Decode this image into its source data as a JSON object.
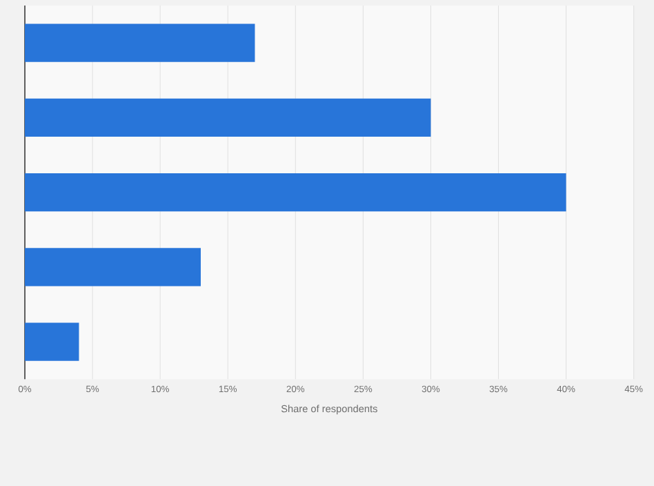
{
  "chart_data": {
    "type": "bar",
    "orientation": "horizontal",
    "xlabel": "Share of respondents",
    "categories": [
      null,
      null,
      null,
      null,
      null
    ],
    "values": [
      17,
      30,
      40,
      13,
      4
    ],
    "color": "#2875d9",
    "xlim": [
      0,
      45
    ],
    "xticks": [
      {
        "value": 0,
        "label": "0%"
      },
      {
        "value": 5,
        "label": "5%"
      },
      {
        "value": 10,
        "label": "10%"
      },
      {
        "value": 15,
        "label": "15%"
      },
      {
        "value": 20,
        "label": "20%"
      },
      {
        "value": 25,
        "label": "25%"
      },
      {
        "value": 30,
        "label": "30%"
      },
      {
        "value": 35,
        "label": "35%"
      },
      {
        "value": 40,
        "label": "40%"
      },
      {
        "value": 45,
        "label": "45%"
      }
    ],
    "grid": "x"
  }
}
